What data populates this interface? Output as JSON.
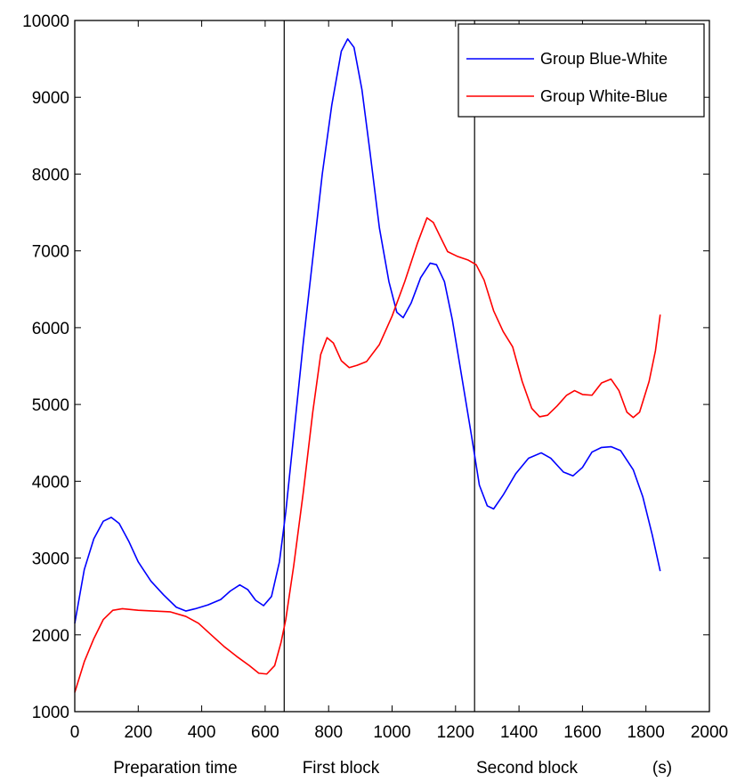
{
  "chart_data": {
    "type": "line",
    "xlim": [
      0,
      2000
    ],
    "ylim": [
      1000,
      10000
    ],
    "xticks": [
      0,
      200,
      400,
      600,
      800,
      1000,
      1200,
      1400,
      1600,
      1800,
      2000
    ],
    "yticks": [
      1000,
      2000,
      3000,
      4000,
      5000,
      6000,
      7000,
      8000,
      9000,
      10000
    ],
    "xtick_labels": [
      "0",
      "200",
      "400",
      "600",
      "800",
      "1000",
      "1200",
      "1400",
      "1600",
      "1800",
      "2000"
    ],
    "ytick_labels": [
      "1000",
      "2000",
      "3000",
      "4000",
      "5000",
      "6000",
      "7000",
      "8000",
      "9000",
      "10000"
    ],
    "vertical_lines": [
      660,
      1260
    ],
    "region_labels": [
      "Preparation time",
      "First block",
      "Second block",
      "(s)"
    ],
    "legend_position": "top-right",
    "grid": false,
    "series": [
      {
        "name": "Group Blue-White",
        "color": "#0000ff",
        "points": [
          [
            0,
            2150
          ],
          [
            30,
            2850
          ],
          [
            60,
            3250
          ],
          [
            90,
            3480
          ],
          [
            115,
            3530
          ],
          [
            140,
            3450
          ],
          [
            170,
            3220
          ],
          [
            200,
            2950
          ],
          [
            240,
            2700
          ],
          [
            280,
            2520
          ],
          [
            320,
            2360
          ],
          [
            350,
            2310
          ],
          [
            380,
            2340
          ],
          [
            420,
            2390
          ],
          [
            460,
            2460
          ],
          [
            490,
            2570
          ],
          [
            520,
            2650
          ],
          [
            545,
            2590
          ],
          [
            570,
            2450
          ],
          [
            595,
            2380
          ],
          [
            620,
            2500
          ],
          [
            645,
            2950
          ],
          [
            665,
            3600
          ],
          [
            690,
            4600
          ],
          [
            720,
            5800
          ],
          [
            750,
            6900
          ],
          [
            780,
            8000
          ],
          [
            810,
            8900
          ],
          [
            840,
            9600
          ],
          [
            860,
            9760
          ],
          [
            880,
            9650
          ],
          [
            905,
            9100
          ],
          [
            930,
            8300
          ],
          [
            960,
            7300
          ],
          [
            990,
            6600
          ],
          [
            1015,
            6200
          ],
          [
            1035,
            6130
          ],
          [
            1060,
            6320
          ],
          [
            1090,
            6650
          ],
          [
            1120,
            6840
          ],
          [
            1140,
            6820
          ],
          [
            1165,
            6600
          ],
          [
            1190,
            6100
          ],
          [
            1220,
            5350
          ],
          [
            1250,
            4600
          ],
          [
            1275,
            3950
          ],
          [
            1300,
            3680
          ],
          [
            1320,
            3640
          ],
          [
            1350,
            3820
          ],
          [
            1390,
            4100
          ],
          [
            1430,
            4300
          ],
          [
            1470,
            4370
          ],
          [
            1500,
            4300
          ],
          [
            1540,
            4120
          ],
          [
            1570,
            4070
          ],
          [
            1600,
            4180
          ],
          [
            1630,
            4380
          ],
          [
            1660,
            4440
          ],
          [
            1690,
            4450
          ],
          [
            1720,
            4400
          ],
          [
            1760,
            4150
          ],
          [
            1790,
            3800
          ],
          [
            1820,
            3300
          ],
          [
            1845,
            2830
          ]
        ]
      },
      {
        "name": "Group White-Blue",
        "color": "#ff0000",
        "points": [
          [
            0,
            1250
          ],
          [
            30,
            1650
          ],
          [
            60,
            1950
          ],
          [
            90,
            2200
          ],
          [
            120,
            2320
          ],
          [
            150,
            2340
          ],
          [
            200,
            2320
          ],
          [
            250,
            2310
          ],
          [
            300,
            2300
          ],
          [
            350,
            2240
          ],
          [
            390,
            2150
          ],
          [
            430,
            2000
          ],
          [
            470,
            1850
          ],
          [
            510,
            1720
          ],
          [
            550,
            1600
          ],
          [
            580,
            1500
          ],
          [
            605,
            1490
          ],
          [
            630,
            1600
          ],
          [
            650,
            1900
          ],
          [
            665,
            2200
          ],
          [
            690,
            2900
          ],
          [
            720,
            3850
          ],
          [
            750,
            4900
          ],
          [
            775,
            5650
          ],
          [
            795,
            5870
          ],
          [
            815,
            5800
          ],
          [
            840,
            5570
          ],
          [
            865,
            5480
          ],
          [
            890,
            5510
          ],
          [
            920,
            5560
          ],
          [
            960,
            5780
          ],
          [
            1000,
            6150
          ],
          [
            1040,
            6600
          ],
          [
            1080,
            7100
          ],
          [
            1110,
            7430
          ],
          [
            1130,
            7370
          ],
          [
            1150,
            7200
          ],
          [
            1175,
            6990
          ],
          [
            1205,
            6930
          ],
          [
            1240,
            6880
          ],
          [
            1265,
            6820
          ],
          [
            1290,
            6620
          ],
          [
            1320,
            6220
          ],
          [
            1350,
            5950
          ],
          [
            1380,
            5750
          ],
          [
            1410,
            5300
          ],
          [
            1440,
            4950
          ],
          [
            1465,
            4840
          ],
          [
            1490,
            4860
          ],
          [
            1520,
            4980
          ],
          [
            1550,
            5120
          ],
          [
            1575,
            5180
          ],
          [
            1600,
            5130
          ],
          [
            1630,
            5120
          ],
          [
            1660,
            5280
          ],
          [
            1690,
            5330
          ],
          [
            1715,
            5180
          ],
          [
            1740,
            4900
          ],
          [
            1760,
            4830
          ],
          [
            1780,
            4900
          ],
          [
            1810,
            5300
          ],
          [
            1830,
            5700
          ],
          [
            1845,
            6170
          ]
        ]
      }
    ]
  }
}
